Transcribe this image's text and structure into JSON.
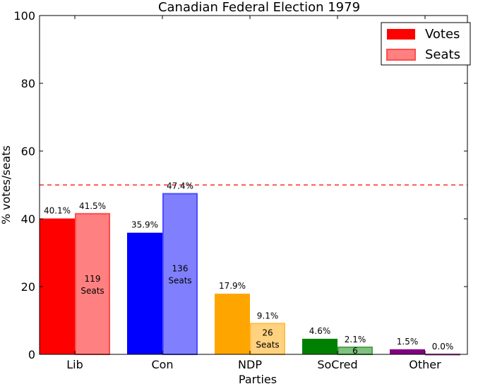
{
  "chart_data": {
    "type": "bar",
    "title": "Canadian Federal Election 1979",
    "xlabel": "Parties",
    "ylabel": "% votes/seats",
    "ylim": [
      0,
      100
    ],
    "yticks": [
      0,
      20,
      40,
      60,
      80,
      100
    ],
    "categories": [
      "Lib",
      "Con",
      "NDP",
      "SoCred",
      "Other"
    ],
    "series": [
      {
        "name": "Votes",
        "values": [
          40.1,
          35.9,
          17.9,
          4.6,
          1.5
        ]
      },
      {
        "name": "Seats",
        "values": [
          41.5,
          47.4,
          9.1,
          2.1,
          0.0
        ]
      }
    ],
    "vote_labels": [
      "40.1%",
      "35.9%",
      "17.9%",
      "4.6%",
      "1.5%"
    ],
    "seat_pct_labels": [
      "41.5%",
      "47.4%",
      "9.1%",
      "2.1%",
      "0.0%"
    ],
    "seat_count_labels": [
      [
        "119",
        "Seats"
      ],
      [
        "136",
        "Seats"
      ],
      [
        "26",
        "Seats"
      ],
      [
        "6"
      ],
      []
    ],
    "vote_colors": [
      "#ff0000",
      "#0000ff",
      "#ffa500",
      "#008000",
      "#800080"
    ],
    "seat_colors": [
      "#ff8080",
      "#8080ff",
      "#ffd280",
      "#80c080",
      "#c080c0"
    ],
    "seat_edge_colors": [
      "#ff4d4d",
      "#4d4dff",
      "#ffc04d",
      "#4da64d",
      "#a64da6"
    ],
    "majority_line": {
      "value": 50,
      "color": "#ff0000",
      "style": "dashed"
    },
    "legend": {
      "position": "top-right",
      "entries": [
        "Votes",
        "Seats"
      ],
      "colors": [
        "#ff0000",
        "#ff8080"
      ]
    },
    "grid": false
  }
}
